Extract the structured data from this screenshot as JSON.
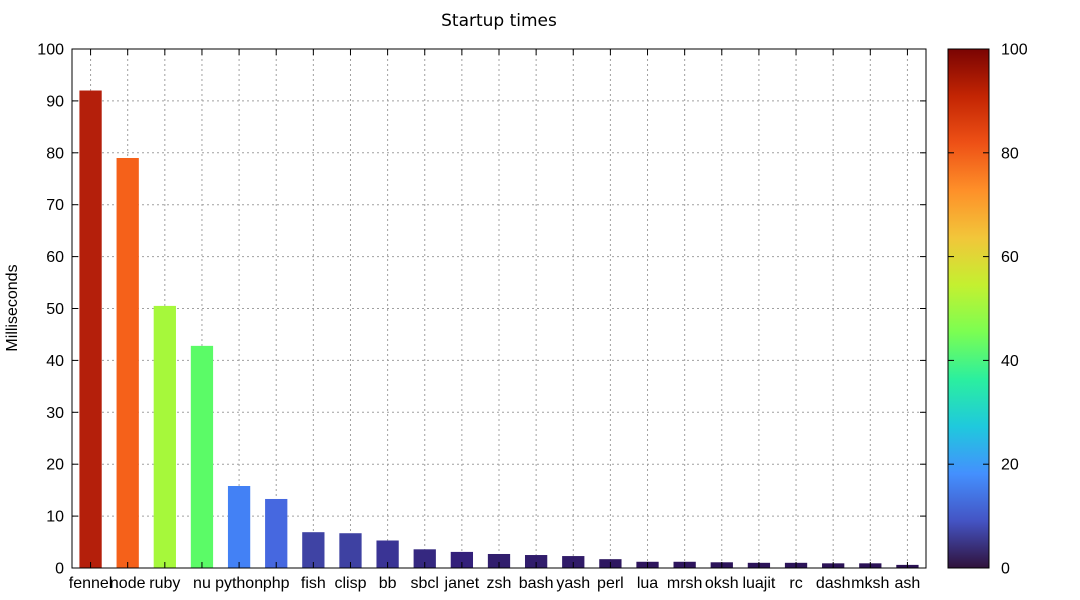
{
  "chart_data": {
    "type": "bar",
    "title": "Startup times",
    "xlabel": "",
    "ylabel": "Milliseconds",
    "ylim": [
      0,
      100
    ],
    "yticks": [
      0,
      10,
      20,
      30,
      40,
      50,
      60,
      70,
      80,
      90,
      100
    ],
    "grid": true,
    "categories": [
      "fennel",
      "node",
      "ruby",
      "nu",
      "python",
      "php",
      "fish",
      "clisp",
      "bb",
      "sbcl",
      "janet",
      "zsh",
      "bash",
      "yash",
      "perl",
      "lua",
      "mrsh",
      "oksh",
      "luajit",
      "rc",
      "dash",
      "mksh",
      "ash"
    ],
    "values": [
      92,
      79,
      50.5,
      42.8,
      15.8,
      13.3,
      6.9,
      6.7,
      5.3,
      3.6,
      3.1,
      2.7,
      2.5,
      2.3,
      1.7,
      1.2,
      1.2,
      1.1,
      1.0,
      1.0,
      0.9,
      0.9,
      0.6
    ],
    "bar_colors": [
      "#b41f0b",
      "#f5611a",
      "#a6f83b",
      "#5bfb67",
      "#4381f5",
      "#4668e0",
      "#3f43a4",
      "#3e41a2",
      "#3a3495",
      "#352880",
      "#33207a",
      "#311e6d",
      "#311d6c",
      "#301b68",
      "#2e1760",
      "#2e155d",
      "#2e155d",
      "#2c145a",
      "#2c1459",
      "#2c1459",
      "#2c1357",
      "#2c1357",
      "#2a1154"
    ],
    "colorbar": {
      "range": [
        0,
        100
      ],
      "ticks": [
        0,
        20,
        40,
        60,
        80,
        100
      ],
      "colormap": "turbo",
      "stops": [
        "#30123b",
        "#4454c4",
        "#4490fe",
        "#1fc9dd",
        "#2bef9f",
        "#7bfe52",
        "#c4f030",
        "#f2c63a",
        "#fe9029",
        "#ee5116",
        "#c32503",
        "#7a0403"
      ]
    }
  }
}
